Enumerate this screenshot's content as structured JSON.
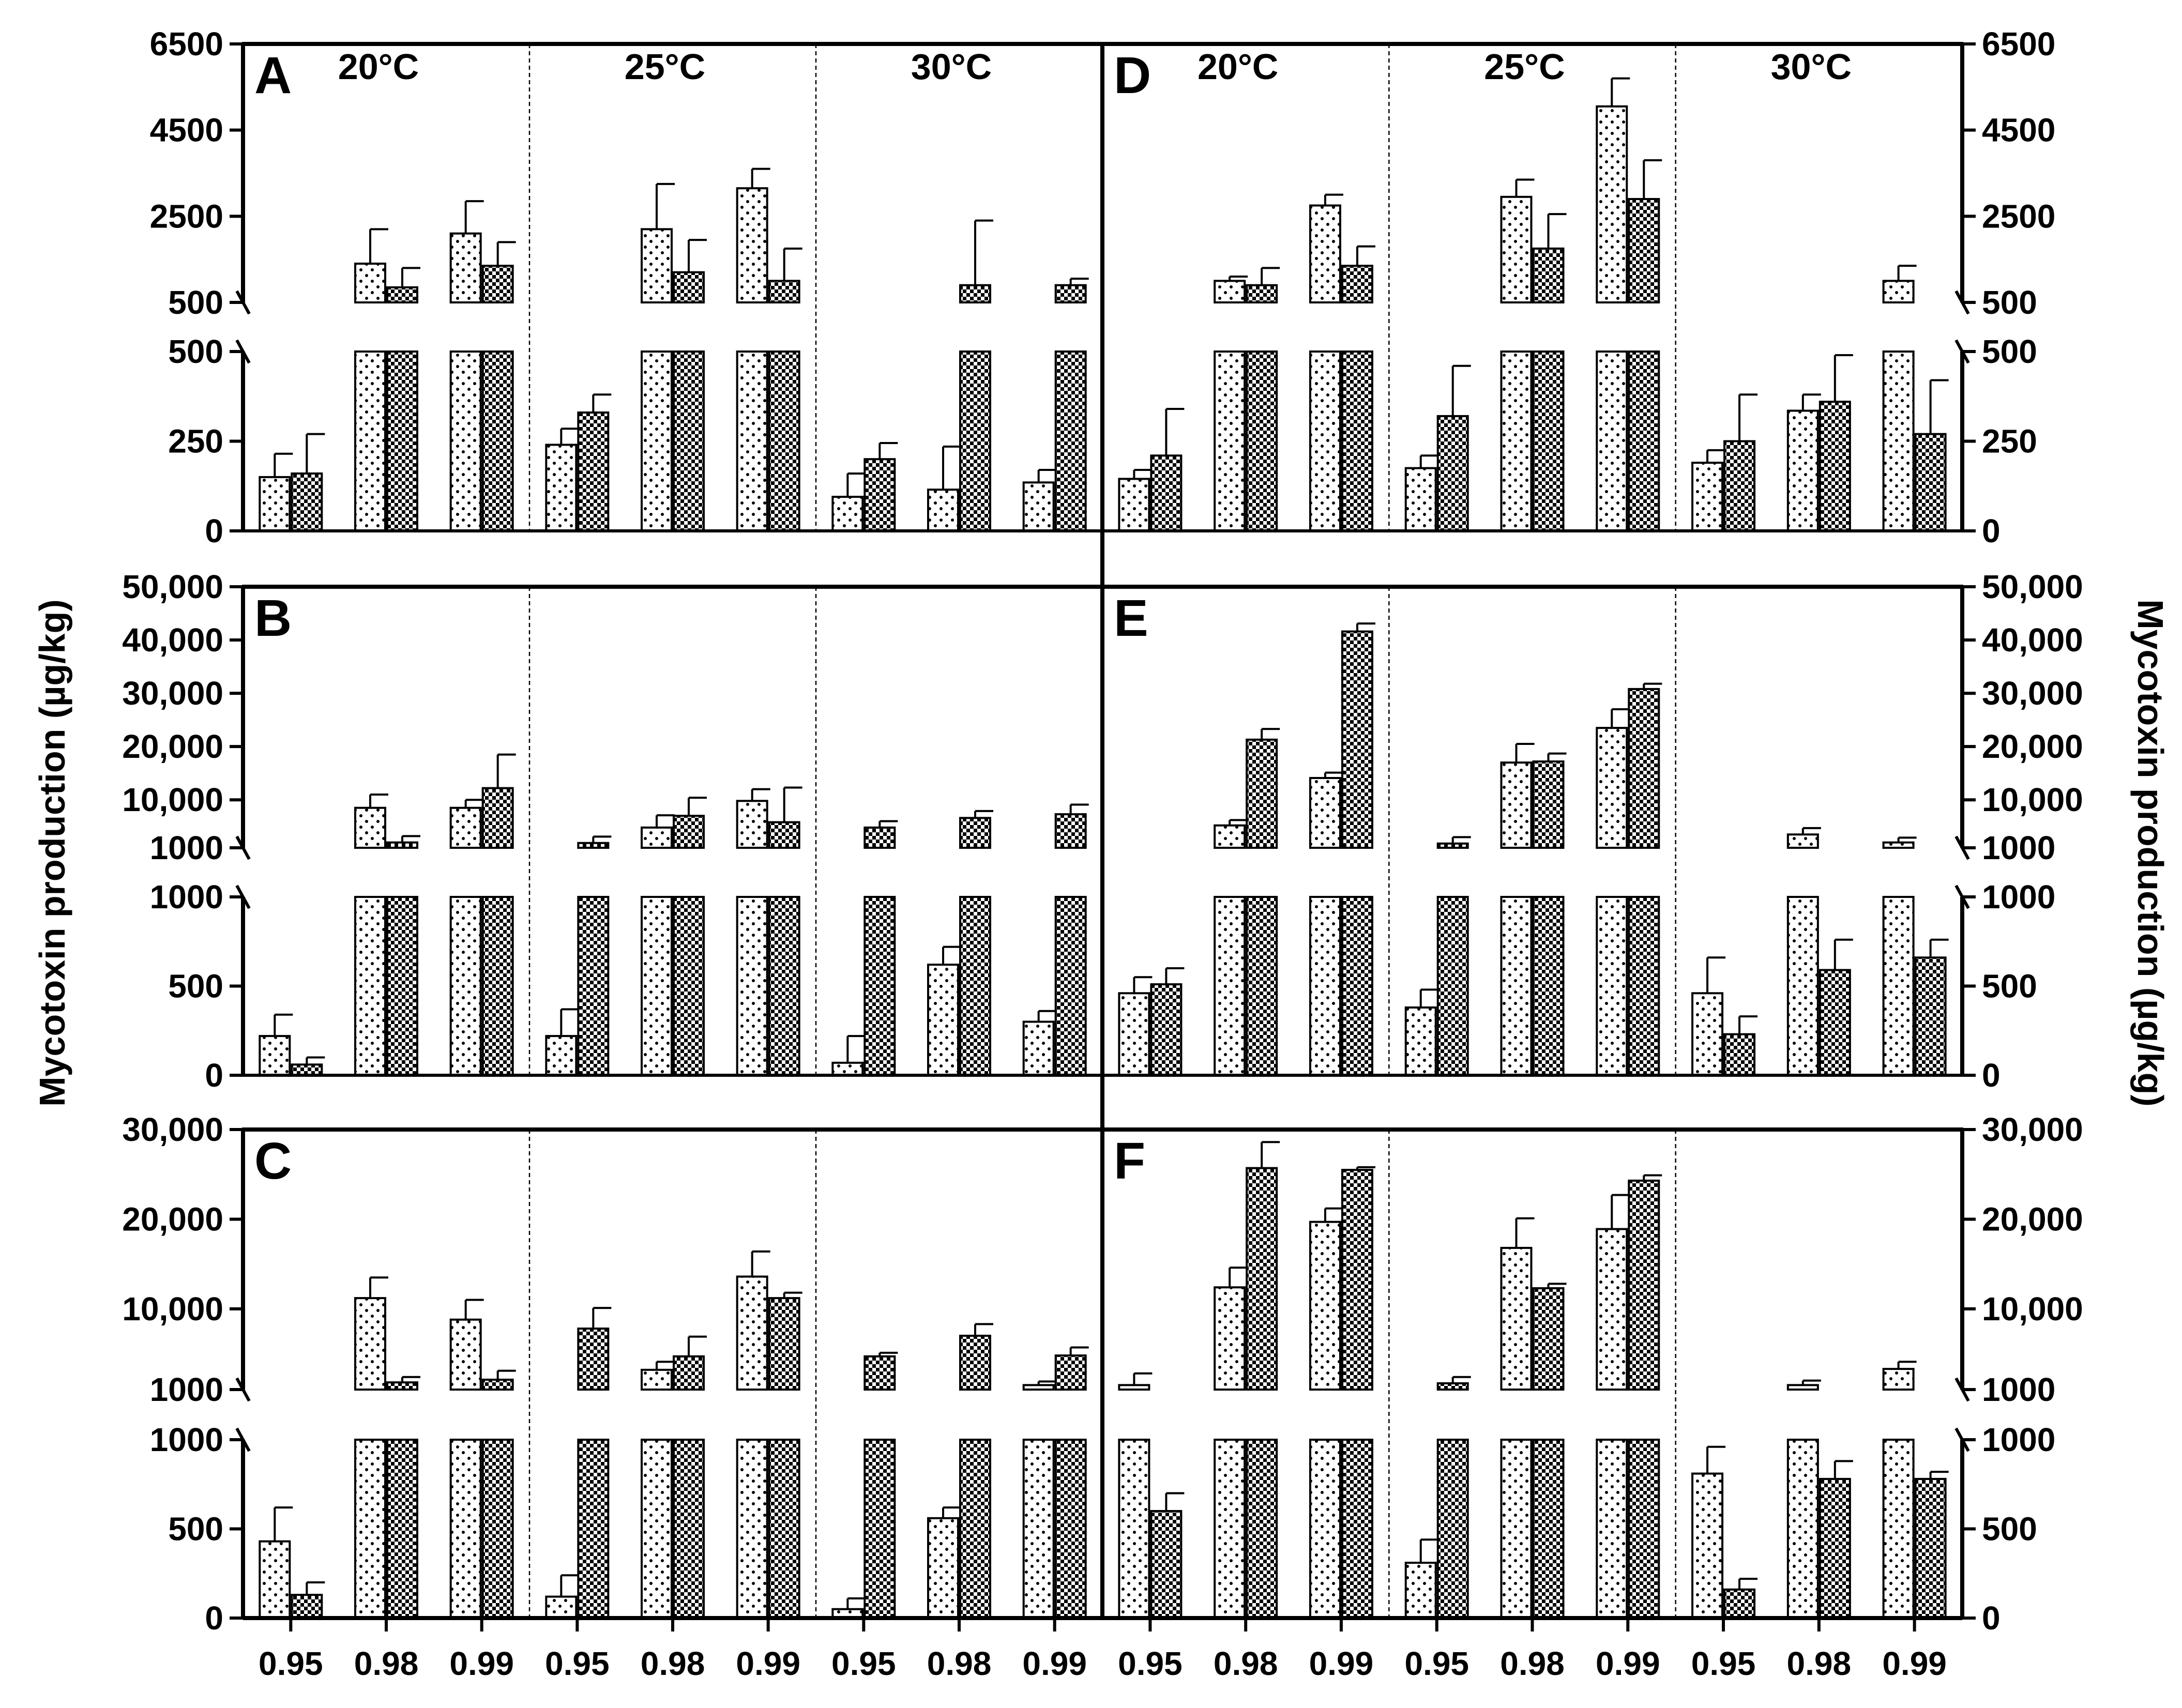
{
  "figure": {
    "y_axis_title_left": "Mycotoxin production (µg/kg)",
    "y_axis_title_right": "Mycotoxin production (µg/kg)",
    "temperatures": [
      "20°C",
      "25°C",
      "30°C"
    ],
    "aw_levels": [
      "0.95",
      "0.98",
      "0.99"
    ]
  },
  "chart_data": [
    {
      "panel": "A",
      "type": "bar",
      "side": "left",
      "temperatures": [
        "20°C",
        "25°C",
        "30°C"
      ],
      "categories": [
        "0.95",
        "0.98",
        "0.99",
        "0.95",
        "0.98",
        "0.99",
        "0.95",
        "0.98",
        "0.99"
      ],
      "upper_ticks": [
        "6500",
        "4500",
        "2500",
        "500"
      ],
      "upper_range": [
        500,
        6500
      ],
      "lower_ticks": [
        "500",
        "250",
        "0"
      ],
      "lower_range": [
        0,
        500
      ],
      "series": [
        {
          "name": "dotted",
          "values": [
            150,
            1400,
            2100,
            240,
            2200,
            3150,
            95,
            115,
            135
          ],
          "errors": [
            65,
            800,
            750,
            45,
            1050,
            450,
            65,
            120,
            35
          ]
        },
        {
          "name": "checkered",
          "values": [
            160,
            850,
            1350,
            330,
            1200,
            1000,
            200,
            900,
            900
          ],
          "errors": [
            110,
            450,
            550,
            50,
            750,
            750,
            45,
            1500,
            150
          ]
        }
      ]
    },
    {
      "panel": "B",
      "type": "bar",
      "side": "left",
      "temperatures": [
        "20°C",
        "25°C",
        "30°C"
      ],
      "categories": [
        "0.95",
        "0.98",
        "0.99",
        "0.95",
        "0.98",
        "0.99",
        "0.95",
        "0.98",
        "0.99"
      ],
      "upper_ticks": [
        "50,000",
        "40,000",
        "30,000",
        "20,000",
        "10,000",
        "1000"
      ],
      "upper_range": [
        1000,
        50000
      ],
      "lower_ticks": [
        "1000",
        "500",
        "0"
      ],
      "lower_range": [
        0,
        1000
      ],
      "series": [
        {
          "name": "dotted",
          "values": [
            220,
            8500,
            8500,
            220,
            4800,
            9800,
            70,
            620,
            300
          ],
          "errors": [
            120,
            2500,
            1500,
            150,
            2300,
            2200,
            150,
            100,
            60
          ]
        },
        {
          "name": "checkered",
          "values": [
            60,
            2000,
            12200,
            1900,
            7000,
            5800,
            4800,
            6600,
            7300
          ],
          "errors": [
            40,
            1200,
            6300,
            1200,
            3400,
            6500,
            1200,
            1300,
            1800
          ]
        }
      ]
    },
    {
      "panel": "C",
      "type": "bar",
      "side": "left",
      "temperatures": [
        "20°C",
        "25°C",
        "30°C"
      ],
      "categories": [
        "0.95",
        "0.98",
        "0.99",
        "0.95",
        "0.98",
        "0.99",
        "0.95",
        "0.98",
        "0.99"
      ],
      "upper_ticks": [
        "30,000",
        "20,000",
        "10,000",
        "1000"
      ],
      "upper_range": [
        1000,
        30000
      ],
      "lower_ticks": [
        "1000",
        "500",
        "0"
      ],
      "lower_range": [
        0,
        1000
      ],
      "series": [
        {
          "name": "dotted",
          "values": [
            430,
            11200,
            8800,
            120,
            3200,
            13600,
            50,
            560,
            1500
          ],
          "errors": [
            190,
            2300,
            2200,
            120,
            900,
            2800,
            60,
            60,
            400
          ]
        },
        {
          "name": "checkered",
          "values": [
            130,
            1800,
            2100,
            7800,
            4700,
            11200,
            4700,
            7000,
            4800
          ],
          "errors": [
            70,
            600,
            1000,
            2300,
            2200,
            600,
            400,
            1300,
            900
          ]
        }
      ]
    },
    {
      "panel": "D",
      "type": "bar",
      "side": "right",
      "temperatures": [
        "20°C",
        "25°C",
        "30°C"
      ],
      "categories": [
        "0.95",
        "0.98",
        "0.99",
        "0.95",
        "0.98",
        "0.99",
        "0.95",
        "0.98",
        "0.99"
      ],
      "upper_ticks": [
        "6500",
        "4500",
        "2500",
        "500"
      ],
      "upper_range": [
        500,
        6500
      ],
      "lower_ticks": [
        "500",
        "250",
        "0"
      ],
      "lower_range": [
        0,
        500
      ],
      "series": [
        {
          "name": "dotted",
          "values": [
            145,
            1000,
            2750,
            175,
            2950,
            5050,
            190,
            335,
            1000
          ],
          "errors": [
            25,
            100,
            250,
            35,
            400,
            650,
            35,
            45,
            350
          ]
        },
        {
          "name": "checkered",
          "values": [
            210,
            900,
            1350,
            320,
            1750,
            2900,
            250,
            360,
            270
          ],
          "errors": [
            130,
            400,
            450,
            140,
            800,
            900,
            130,
            130,
            150
          ]
        }
      ]
    },
    {
      "panel": "E",
      "type": "bar",
      "side": "right",
      "temperatures": [
        "20°C",
        "25°C",
        "30°C"
      ],
      "categories": [
        "0.95",
        "0.98",
        "0.99",
        "0.95",
        "0.98",
        "0.99",
        "0.95",
        "0.98",
        "0.99"
      ],
      "upper_ticks": [
        "50,000",
        "40,000",
        "30,000",
        "20,000",
        "10,000",
        "1000"
      ],
      "upper_range": [
        1000,
        50000
      ],
      "lower_ticks": [
        "1000",
        "500",
        "0"
      ],
      "lower_range": [
        0,
        1000
      ],
      "series": [
        {
          "name": "dotted",
          "values": [
            460,
            5200,
            14100,
            380,
            17000,
            23500,
            460,
            3500,
            2000
          ],
          "errors": [
            90,
            1000,
            1000,
            100,
            3500,
            3500,
            200,
            1200,
            900
          ]
        },
        {
          "name": "checkered",
          "values": [
            510,
            21300,
            41600,
            1800,
            17200,
            30800,
            230,
            590,
            660
          ],
          "errors": [
            90,
            2000,
            1500,
            1200,
            1500,
            1000,
            100,
            170,
            100
          ]
        }
      ]
    },
    {
      "panel": "F",
      "type": "bar",
      "side": "right",
      "temperatures": [
        "20°C",
        "25°C",
        "30°C"
      ],
      "categories": [
        "0.95",
        "0.98",
        "0.99",
        "0.95",
        "0.98",
        "0.99",
        "0.95",
        "0.98",
        "0.99"
      ],
      "upper_ticks": [
        "30,000",
        "20,000",
        "10,000",
        "1000"
      ],
      "upper_range": [
        1000,
        30000
      ],
      "lower_ticks": [
        "1000",
        "500",
        "0"
      ],
      "lower_range": [
        0,
        1000
      ],
      "series": [
        {
          "name": "dotted",
          "values": [
            1500,
            12400,
            19700,
            310,
            16800,
            18900,
            810,
            1500,
            3300
          ],
          "errors": [
            1300,
            2200,
            1500,
            130,
            3300,
            3800,
            150,
            500,
            800
          ]
        },
        {
          "name": "checkered",
          "values": [
            600,
            25700,
            25500,
            1700,
            12300,
            24300,
            160,
            780,
            780
          ],
          "errors": [
            100,
            2900,
            300,
            700,
            500,
            600,
            60,
            100,
            40
          ]
        }
      ]
    }
  ]
}
